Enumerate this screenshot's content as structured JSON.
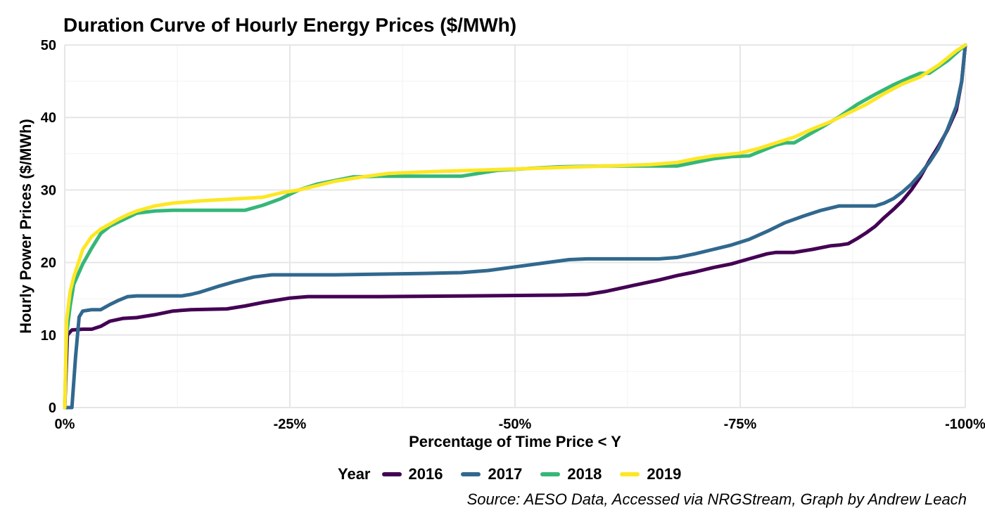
{
  "chart_data": {
    "type": "line",
    "title": "Duration Curve of Hourly Energy Prices ($/MWh)",
    "xlabel": "Percentage of Time Price < Y",
    "ylabel": "Hourly Power Prices ($/MWh)",
    "xlim": [
      0,
      100
    ],
    "ylim": [
      0,
      50
    ],
    "x_ticks": [
      0,
      25,
      50,
      75,
      100
    ],
    "x_tick_labels": [
      "0%",
      "-25%",
      "-50%",
      "-75%",
      "-100%"
    ],
    "y_ticks": [
      0,
      10,
      20,
      30,
      40,
      50
    ],
    "y_tick_labels": [
      "0",
      "10",
      "20",
      "30",
      "40",
      "50"
    ],
    "grid": true,
    "legend_title": "Year",
    "legend_position": "bottom",
    "caption": "Source: AESO Data, Accessed via NRGStream, Graph by Andrew Leach",
    "series": [
      {
        "name": "2016",
        "color": "#440154",
        "points": [
          [
            0,
            0
          ],
          [
            0.3,
            10
          ],
          [
            0.8,
            10.7
          ],
          [
            2,
            10.8
          ],
          [
            3,
            10.8
          ],
          [
            4,
            11.2
          ],
          [
            5,
            11.9
          ],
          [
            6.5,
            12.3
          ],
          [
            8,
            12.4
          ],
          [
            10,
            12.8
          ],
          [
            12,
            13.3
          ],
          [
            14,
            13.5
          ],
          [
            18,
            13.6
          ],
          [
            20,
            14
          ],
          [
            22,
            14.5
          ],
          [
            25,
            15.1
          ],
          [
            27,
            15.3
          ],
          [
            35,
            15.3
          ],
          [
            45,
            15.4
          ],
          [
            55,
            15.5
          ],
          [
            58,
            15.6
          ],
          [
            60,
            16
          ],
          [
            63,
            16.8
          ],
          [
            66,
            17.6
          ],
          [
            68,
            18.2
          ],
          [
            70,
            18.7
          ],
          [
            72,
            19.3
          ],
          [
            74,
            19.8
          ],
          [
            76,
            20.5
          ],
          [
            78,
            21.2
          ],
          [
            79,
            21.4
          ],
          [
            81,
            21.4
          ],
          [
            83,
            21.8
          ],
          [
            85,
            22.3
          ],
          [
            86,
            22.4
          ],
          [
            87,
            22.6
          ],
          [
            88,
            23.3
          ],
          [
            89,
            24.1
          ],
          [
            90,
            25
          ],
          [
            91,
            26.2
          ],
          [
            92,
            27.3
          ],
          [
            93,
            28.5
          ],
          [
            94,
            30
          ],
          [
            95,
            31.8
          ],
          [
            96,
            34
          ],
          [
            97,
            36
          ],
          [
            98,
            38.2
          ],
          [
            99,
            41
          ],
          [
            99.6,
            45
          ],
          [
            100,
            50
          ]
        ]
      },
      {
        "name": "2017",
        "color": "#31688E",
        "points": [
          [
            0,
            0
          ],
          [
            0.8,
            0
          ],
          [
            1.2,
            7
          ],
          [
            1.6,
            12.5
          ],
          [
            2,
            13.3
          ],
          [
            3,
            13.5
          ],
          [
            4,
            13.5
          ],
          [
            5,
            14.2
          ],
          [
            6,
            14.8
          ],
          [
            7,
            15.3
          ],
          [
            8,
            15.4
          ],
          [
            10,
            15.4
          ],
          [
            13,
            15.4
          ],
          [
            14,
            15.6
          ],
          [
            15,
            15.9
          ],
          [
            17,
            16.7
          ],
          [
            19,
            17.4
          ],
          [
            21,
            18
          ],
          [
            23,
            18.3
          ],
          [
            30,
            18.3
          ],
          [
            40,
            18.5
          ],
          [
            44,
            18.6
          ],
          [
            47,
            18.9
          ],
          [
            50,
            19.4
          ],
          [
            53,
            19.9
          ],
          [
            56,
            20.4
          ],
          [
            58,
            20.5
          ],
          [
            66,
            20.5
          ],
          [
            68,
            20.7
          ],
          [
            70,
            21.2
          ],
          [
            72,
            21.8
          ],
          [
            74,
            22.4
          ],
          [
            76,
            23.2
          ],
          [
            78,
            24.3
          ],
          [
            80,
            25.5
          ],
          [
            82,
            26.4
          ],
          [
            84,
            27.2
          ],
          [
            85,
            27.5
          ],
          [
            86,
            27.8
          ],
          [
            88,
            27.8
          ],
          [
            90,
            27.8
          ],
          [
            91,
            28.2
          ],
          [
            92,
            28.8
          ],
          [
            93,
            29.7
          ],
          [
            94,
            30.8
          ],
          [
            95,
            32.2
          ],
          [
            96,
            33.8
          ],
          [
            97,
            35.7
          ],
          [
            98,
            38.3
          ],
          [
            99,
            41.5
          ],
          [
            99.6,
            45
          ],
          [
            100,
            50
          ]
        ]
      },
      {
        "name": "2018",
        "color": "#35B779",
        "points": [
          [
            0,
            0
          ],
          [
            0.2,
            10
          ],
          [
            0.6,
            14
          ],
          [
            1,
            17
          ],
          [
            2,
            19.8
          ],
          [
            3,
            22
          ],
          [
            4,
            24
          ],
          [
            5,
            25
          ],
          [
            6,
            25.6
          ],
          [
            7,
            26.2
          ],
          [
            8,
            26.8
          ],
          [
            10,
            27.1
          ],
          [
            12,
            27.2
          ],
          [
            15,
            27.2
          ],
          [
            20,
            27.2
          ],
          [
            22,
            27.9
          ],
          [
            24,
            28.8
          ],
          [
            26,
            30
          ],
          [
            28,
            30.8
          ],
          [
            30,
            31.3
          ],
          [
            32,
            31.8
          ],
          [
            35,
            31.9
          ],
          [
            40,
            31.9
          ],
          [
            44,
            31.9
          ],
          [
            46,
            32.3
          ],
          [
            48,
            32.7
          ],
          [
            52,
            33
          ],
          [
            55,
            33.2
          ],
          [
            60,
            33.3
          ],
          [
            65,
            33.3
          ],
          [
            68,
            33.3
          ],
          [
            70,
            33.8
          ],
          [
            72,
            34.3
          ],
          [
            74,
            34.6
          ],
          [
            76,
            34.7
          ],
          [
            78,
            35.7
          ],
          [
            79,
            36.2
          ],
          [
            80,
            36.5
          ],
          [
            81,
            36.5
          ],
          [
            82,
            37.2
          ],
          [
            84,
            38.6
          ],
          [
            86,
            40.1
          ],
          [
            88,
            41.8
          ],
          [
            90,
            43.2
          ],
          [
            92,
            44.5
          ],
          [
            94,
            45.6
          ],
          [
            95,
            46.1
          ],
          [
            96,
            46.1
          ],
          [
            98,
            47.8
          ],
          [
            100,
            50
          ]
        ]
      },
      {
        "name": "2019",
        "color": "#FDE725",
        "points": [
          [
            0,
            0
          ],
          [
            0.2,
            12
          ],
          [
            0.6,
            16
          ],
          [
            1,
            18
          ],
          [
            2,
            21.8
          ],
          [
            3,
            23.6
          ],
          [
            4,
            24.6
          ],
          [
            5,
            25.3
          ],
          [
            6,
            26
          ],
          [
            7,
            26.6
          ],
          [
            8,
            27.1
          ],
          [
            10,
            27.8
          ],
          [
            12,
            28.2
          ],
          [
            15,
            28.5
          ],
          [
            18,
            28.7
          ],
          [
            22,
            29
          ],
          [
            24,
            29.6
          ],
          [
            26,
            30
          ],
          [
            28,
            30.6
          ],
          [
            30,
            31.2
          ],
          [
            33,
            31.8
          ],
          [
            36,
            32.3
          ],
          [
            40,
            32.5
          ],
          [
            45,
            32.7
          ],
          [
            50,
            32.9
          ],
          [
            55,
            33.1
          ],
          [
            60,
            33.3
          ],
          [
            65,
            33.5
          ],
          [
            68,
            33.8
          ],
          [
            70,
            34.3
          ],
          [
            72,
            34.7
          ],
          [
            75,
            35.1
          ],
          [
            77,
            35.7
          ],
          [
            79,
            36.5
          ],
          [
            81,
            37.3
          ],
          [
            83,
            38.4
          ],
          [
            85,
            39.4
          ],
          [
            87,
            40.6
          ],
          [
            89,
            41.8
          ],
          [
            91,
            43.3
          ],
          [
            93,
            44.6
          ],
          [
            95,
            45.6
          ],
          [
            97,
            47.2
          ],
          [
            99,
            49.2
          ],
          [
            100,
            50
          ]
        ]
      }
    ]
  }
}
